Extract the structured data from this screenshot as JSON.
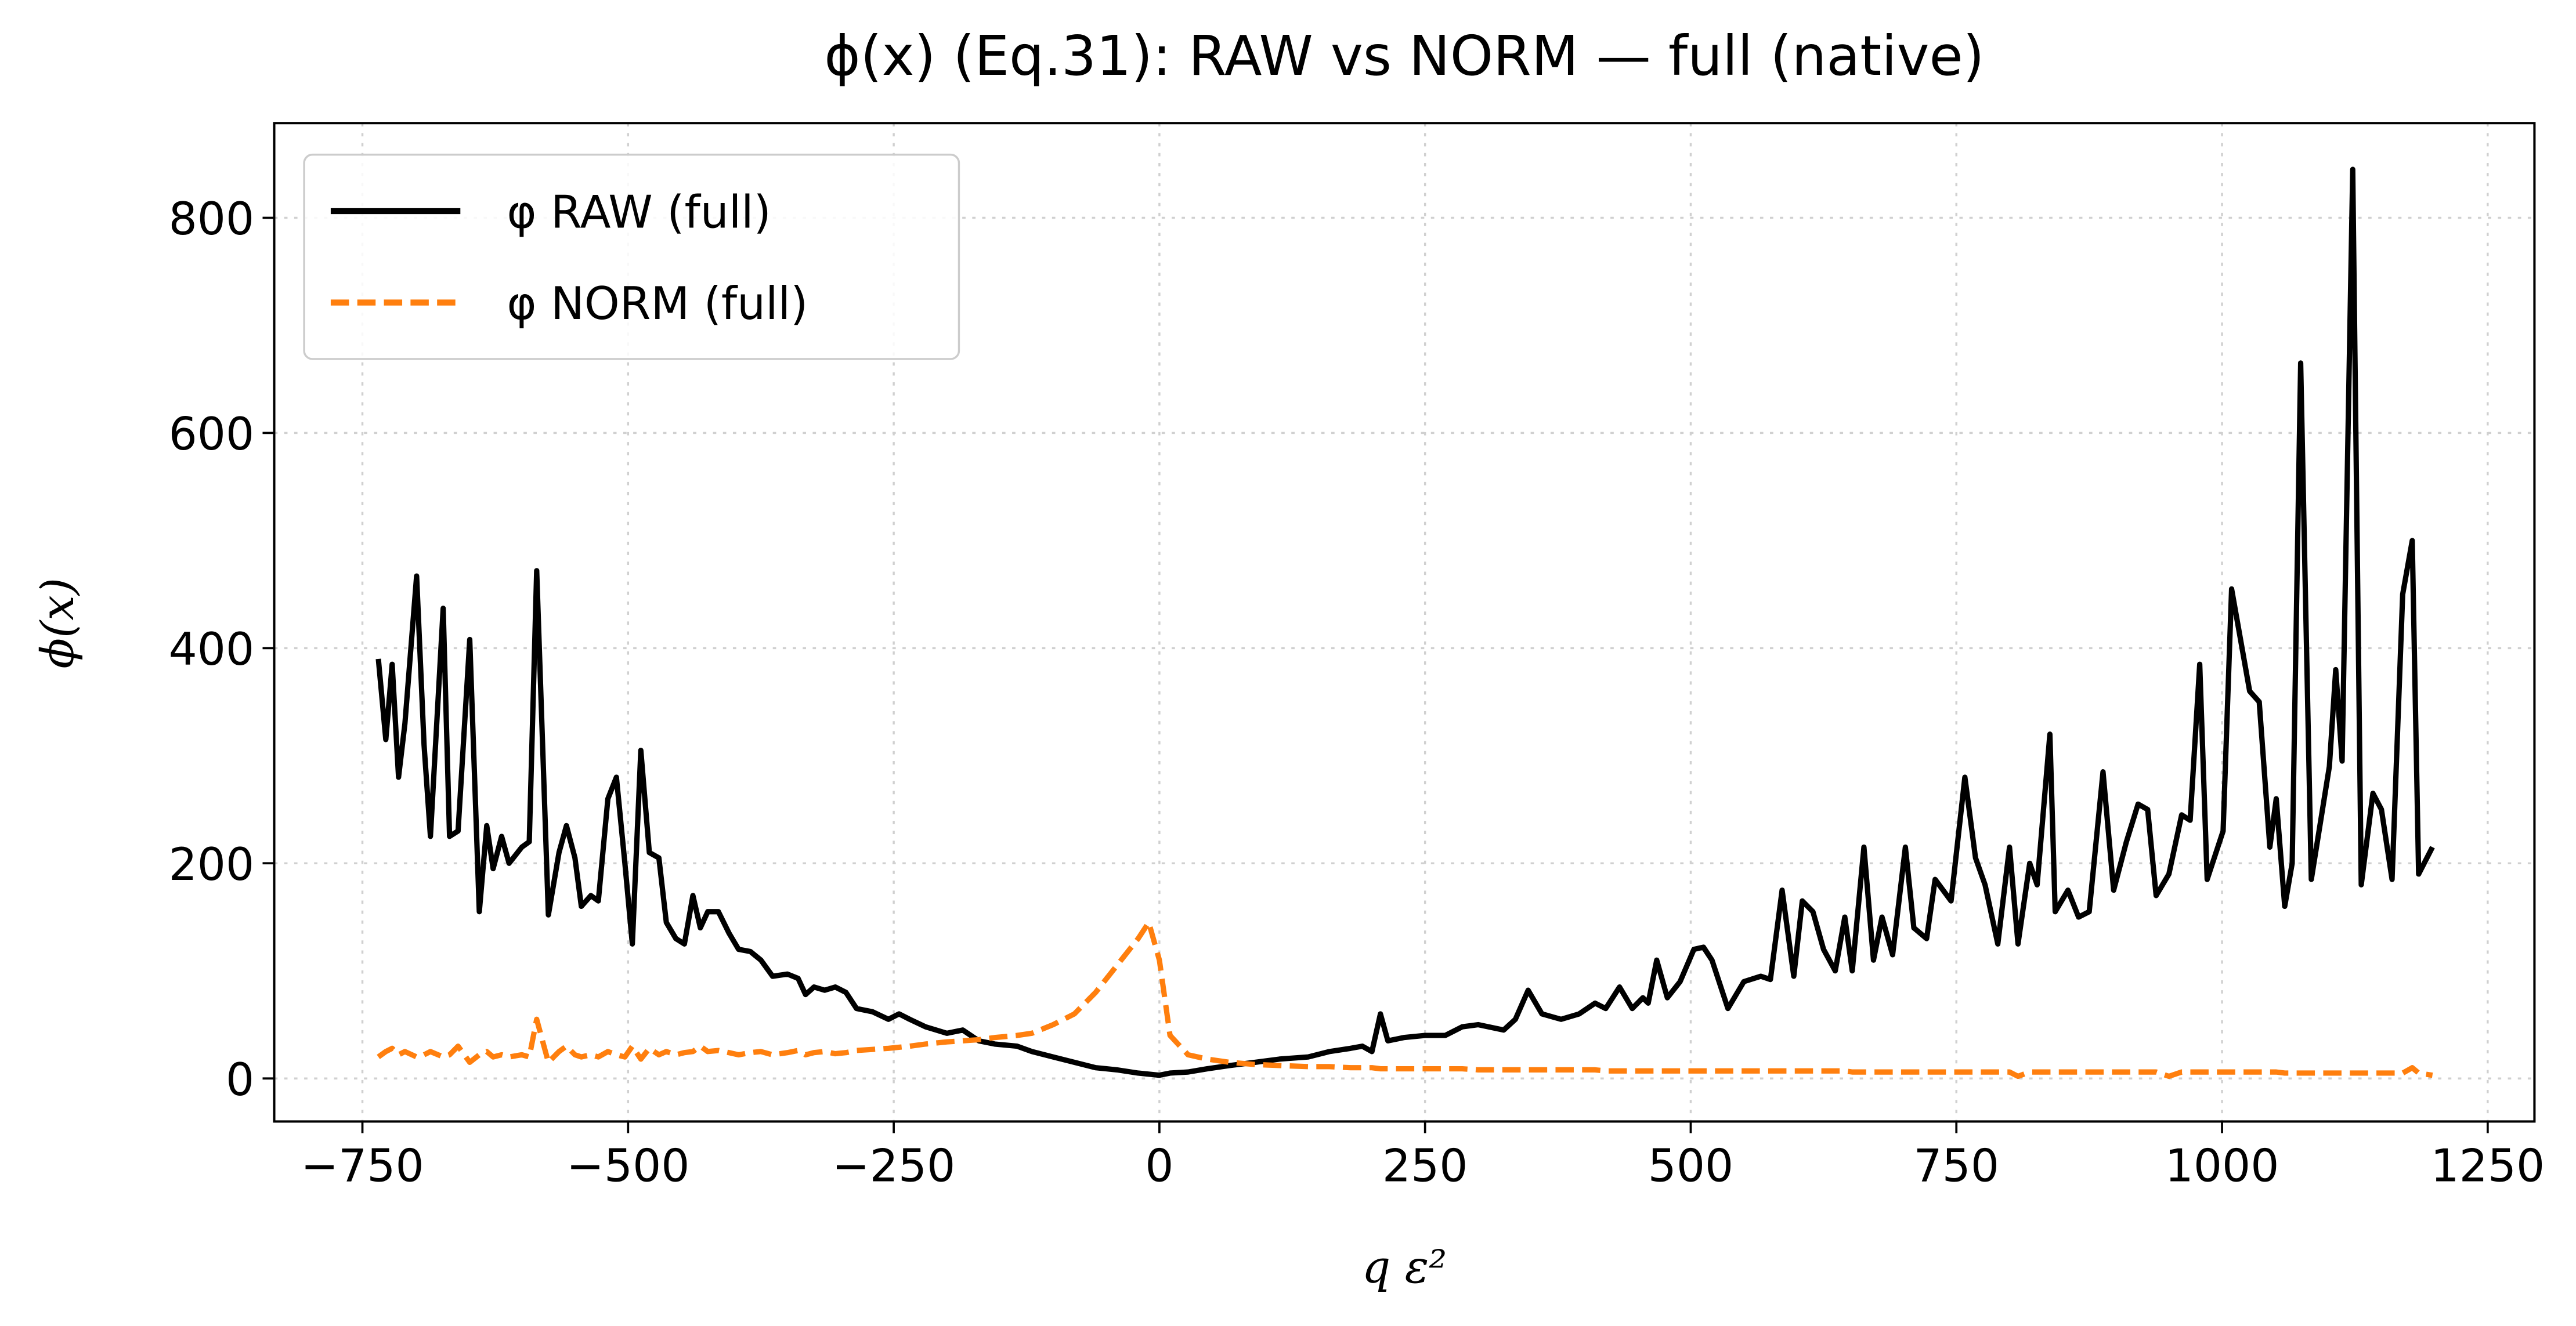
{
  "chart_data": {
    "type": "line",
    "title": "ϕ(x) (Eq.31): RAW vs NORM — full (native)",
    "xlabel": "q ε²",
    "ylabel": "ϕ(x)",
    "x": [
      -735,
      -728,
      -722,
      -716,
      -710,
      -699,
      -692,
      -686,
      -674,
      -668,
      -660,
      -649,
      -640,
      -633,
      -627,
      -619,
      -612,
      -600,
      -593,
      -586,
      -575,
      -565,
      -558,
      -550,
      -544,
      -535,
      -528,
      -519,
      -511,
      -503,
      -496,
      -488,
      -480,
      -471,
      -464,
      -455,
      -447,
      -439,
      -432,
      -425,
      -415,
      -405,
      -396,
      -385,
      -375,
      -364,
      -350,
      -340,
      -333,
      -325,
      -315,
      -305,
      -295,
      -285,
      -270,
      -255,
      -245,
      -235,
      -220,
      -200,
      -185,
      -170,
      -155,
      -134,
      -120,
      -100,
      -80,
      -60,
      -40,
      -20,
      -10,
      0,
      10,
      27,
      45,
      66,
      90,
      113,
      140,
      160,
      180,
      191,
      200,
      208,
      215,
      230,
      250,
      269,
      285,
      300,
      324,
      335,
      347,
      360,
      378,
      395,
      410,
      420,
      433,
      445,
      455,
      460,
      468,
      478,
      490,
      503,
      512,
      520,
      535,
      550,
      566,
      575,
      586,
      597,
      605,
      615,
      625,
      636,
      645,
      652,
      663,
      672,
      680,
      690,
      702,
      710,
      722,
      730,
      745,
      758,
      768,
      777,
      789,
      800,
      808,
      819,
      826,
      838,
      843,
      855,
      865,
      875,
      888,
      898,
      910,
      921,
      930,
      938,
      950,
      962,
      970,
      979,
      986,
      1001,
      1009,
      1026,
      1035,
      1045,
      1051,
      1059,
      1066,
      1074,
      1084,
      1101,
      1107,
      1113,
      1123,
      1131,
      1142,
      1150,
      1160,
      1170,
      1179,
      1185,
      1198
    ],
    "series": [
      {
        "name": "φ RAW (full)",
        "color": "#000000",
        "linestyle": "solid",
        "values": [
          390,
          315,
          385,
          280,
          330,
          467,
          310,
          225,
          437,
          225,
          230,
          408,
          155,
          235,
          195,
          225,
          200,
          215,
          220,
          472,
          152,
          210,
          235,
          205,
          160,
          170,
          165,
          260,
          280,
          200,
          125,
          305,
          210,
          205,
          145,
          130,
          125,
          170,
          140,
          155,
          155,
          135,
          120,
          118,
          110,
          95,
          97,
          93,
          78,
          85,
          82,
          85,
          80,
          65,
          62,
          55,
          60,
          55,
          48,
          42,
          45,
          35,
          32,
          30,
          25,
          20,
          15,
          10,
          8,
          5,
          4,
          3,
          5,
          6,
          9,
          12,
          15,
          18,
          20,
          25,
          28,
          30,
          25,
          60,
          35,
          38,
          40,
          40,
          48,
          50,
          45,
          55,
          82,
          60,
          55,
          60,
          70,
          65,
          85,
          65,
          75,
          70,
          110,
          75,
          90,
          120,
          122,
          110,
          65,
          90,
          95,
          92,
          175,
          95,
          165,
          155,
          120,
          100,
          150,
          100,
          215,
          110,
          150,
          115,
          215,
          140,
          130,
          185,
          165,
          280,
          205,
          180,
          125,
          215,
          125,
          200,
          180,
          320,
          155,
          175,
          150,
          155,
          285,
          175,
          220,
          255,
          250,
          170,
          190,
          245,
          240,
          385,
          185,
          230,
          455,
          360,
          350,
          215,
          260,
          160,
          200,
          665,
          185,
          290,
          380,
          295,
          845,
          180,
          265,
          250,
          185,
          450,
          500,
          190,
          215
        ]
      },
      {
        "name": "φ NORM (full)",
        "color": "#ff7f0e",
        "linestyle": "dashed",
        "values": [
          20,
          25,
          28,
          22,
          25,
          20,
          22,
          25,
          20,
          22,
          30,
          15,
          22,
          25,
          20,
          22,
          20,
          22,
          20,
          55,
          15,
          25,
          30,
          22,
          20,
          22,
          20,
          25,
          22,
          20,
          30,
          18,
          28,
          22,
          25,
          22,
          24,
          25,
          30,
          25,
          26,
          24,
          22,
          24,
          25,
          22,
          24,
          26,
          22,
          24,
          25,
          23,
          24,
          26,
          27,
          28,
          29,
          30,
          32,
          34,
          35,
          36,
          38,
          40,
          42,
          50,
          60,
          80,
          105,
          130,
          145,
          110,
          40,
          22,
          18,
          15,
          13,
          12,
          11,
          11,
          10,
          10,
          10,
          9,
          9,
          9,
          9,
          9,
          9,
          8,
          8,
          8,
          8,
          8,
          8,
          8,
          8,
          7,
          7,
          7,
          7,
          7,
          7,
          7,
          7,
          7,
          7,
          7,
          7,
          7,
          7,
          7,
          7,
          7,
          7,
          7,
          7,
          7,
          7,
          6,
          6,
          6,
          6,
          6,
          6,
          6,
          6,
          6,
          6,
          6,
          6,
          6,
          6,
          6,
          2,
          6,
          6,
          6,
          6,
          6,
          6,
          6,
          6,
          6,
          6,
          6,
          6,
          6,
          2,
          6,
          6,
          6,
          6,
          6,
          6,
          6,
          6,
          6,
          6,
          5,
          5,
          5,
          5,
          5,
          5,
          5,
          5,
          5,
          5,
          5,
          5,
          5,
          10,
          5,
          3
        ]
      }
    ],
    "xlim": [
      -833,
      1294
    ],
    "ylim": [
      -40,
      888
    ],
    "xticks": [
      {
        "value": -750,
        "label": "−750"
      },
      {
        "value": -500,
        "label": "−500"
      },
      {
        "value": -250,
        "label": "−250"
      },
      0,
      250,
      500,
      750,
      1000,
      1250
    ],
    "yticks": [
      0,
      200,
      400,
      600,
      800
    ],
    "grid": true,
    "legend": "upper left"
  }
}
